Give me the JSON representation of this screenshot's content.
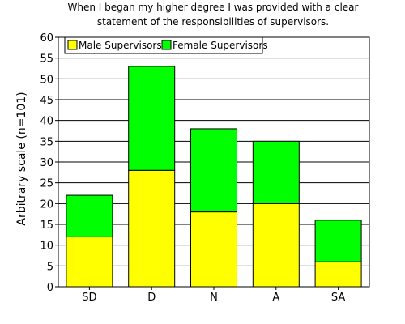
{
  "chart_data": {
    "type": "bar",
    "stacked": true,
    "title": "When I began my higher degree I was provided with a clear statement of the responsibilities of supervisors.",
    "title_lines": [
      "When I began my higher degree I was provided with a clear",
      "statement of the responsibilities of supervisors."
    ],
    "xlabel": "",
    "ylabel": "Arbitrary scale (n=101)",
    "categories": [
      "SD",
      "D",
      "N",
      "A",
      "SA"
    ],
    "series": [
      {
        "name": "Male Supervisors",
        "values": [
          12,
          28,
          18,
          20,
          6
        ],
        "color": "#ffff00"
      },
      {
        "name": "Female Supervisors",
        "values": [
          10,
          25,
          20,
          15,
          10
        ],
        "color": "#00ff00"
      }
    ],
    "ylim": [
      0,
      60
    ],
    "yticks": [
      0,
      5,
      10,
      15,
      20,
      25,
      30,
      35,
      40,
      45,
      50,
      55,
      60
    ],
    "grid": true,
    "legend_position": "top-left"
  }
}
